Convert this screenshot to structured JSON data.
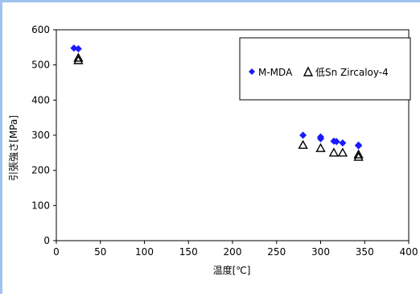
{
  "chart_data": {
    "type": "scatter",
    "title": "",
    "xlabel": "温度[℃]",
    "ylabel": "引張強さ[MPa]",
    "xlim": [
      0,
      400
    ],
    "ylim": [
      0,
      600
    ],
    "x_ticks": [
      "0",
      "50",
      "100",
      "150",
      "200",
      "250",
      "300",
      "350",
      "400"
    ],
    "y_ticks": [
      "0",
      "100",
      "200",
      "300",
      "400",
      "500",
      "600"
    ],
    "grid": false,
    "legend_position": "top-right",
    "series": [
      {
        "name": "M-MDA",
        "marker": "diamond",
        "color": "#1a1aff",
        "points": [
          [
            20,
            548
          ],
          [
            25,
            546
          ],
          [
            280,
            300
          ],
          [
            300,
            295
          ],
          [
            300,
            290
          ],
          [
            315,
            283
          ],
          [
            318,
            282
          ],
          [
            325,
            278
          ],
          [
            343,
            272
          ],
          [
            343,
            270
          ]
        ]
      },
      {
        "name": "低Sn Zircaloy-4",
        "marker": "triangle-open",
        "color": "#000000",
        "points": [
          [
            25,
            520
          ],
          [
            25,
            513
          ],
          [
            280,
            272
          ],
          [
            300,
            263
          ],
          [
            315,
            250
          ],
          [
            325,
            250
          ],
          [
            343,
            245
          ],
          [
            343,
            238
          ]
        ]
      }
    ]
  }
}
